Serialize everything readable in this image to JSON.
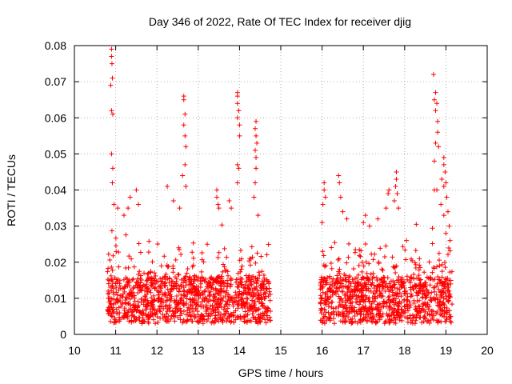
{
  "chart_data": {
    "type": "scatter",
    "title": "Day 346 of 2022, Rate Of TEC Index for receiver djig",
    "xlabel": "GPS time / hours",
    "ylabel": "ROTI / TECUs",
    "xlim": [
      10,
      20
    ],
    "ylim": [
      0,
      0.08
    ],
    "xticks": [
      "10",
      "11",
      "12",
      "13",
      "14",
      "15",
      "16",
      "17",
      "18",
      "19",
      "20"
    ],
    "yticks": [
      "0",
      "0.01",
      "0.02",
      "0.03",
      "0.04",
      "0.05",
      "0.06",
      "0.07",
      "0.08"
    ],
    "grid": true,
    "marker": "+",
    "color": "#ff0000",
    "series": [
      {
        "name": "ROTI",
        "segments": [
          {
            "start": 10.8,
            "end": 14.75,
            "base": 0.009
          },
          {
            "start": 15.95,
            "end": 19.15,
            "base": 0.009
          }
        ],
        "points": [
          [
            10.9,
            0.079
          ],
          [
            10.9,
            0.077
          ],
          [
            10.91,
            0.075
          ],
          [
            10.92,
            0.071
          ],
          [
            10.88,
            0.069
          ],
          [
            10.9,
            0.062
          ],
          [
            10.93,
            0.061
          ],
          [
            10.9,
            0.05
          ],
          [
            10.93,
            0.046
          ],
          [
            10.92,
            0.042
          ],
          [
            10.96,
            0.036
          ],
          [
            11.05,
            0.035
          ],
          [
            11.2,
            0.033
          ],
          [
            11.3,
            0.035
          ],
          [
            11.35,
            0.038
          ],
          [
            11.5,
            0.04
          ],
          [
            11.55,
            0.036
          ],
          [
            12.25,
            0.041
          ],
          [
            12.4,
            0.037
          ],
          [
            12.55,
            0.035
          ],
          [
            12.65,
            0.066
          ],
          [
            12.65,
            0.065
          ],
          [
            12.68,
            0.061
          ],
          [
            12.65,
            0.058
          ],
          [
            12.68,
            0.055
          ],
          [
            12.7,
            0.052
          ],
          [
            12.68,
            0.047
          ],
          [
            12.62,
            0.044
          ],
          [
            12.7,
            0.041
          ],
          [
            13.45,
            0.04
          ],
          [
            13.45,
            0.038
          ],
          [
            13.48,
            0.036
          ],
          [
            13.5,
            0.035
          ],
          [
            13.75,
            0.037
          ],
          [
            13.8,
            0.035
          ],
          [
            13.95,
            0.067
          ],
          [
            13.95,
            0.066
          ],
          [
            13.95,
            0.064
          ],
          [
            13.98,
            0.062
          ],
          [
            13.95,
            0.06
          ],
          [
            14.0,
            0.058
          ],
          [
            14.0,
            0.055
          ],
          [
            13.95,
            0.047
          ],
          [
            13.98,
            0.046
          ],
          [
            13.95,
            0.042
          ],
          [
            14.4,
            0.059
          ],
          [
            14.38,
            0.057
          ],
          [
            14.4,
            0.055
          ],
          [
            14.42,
            0.053
          ],
          [
            14.38,
            0.051
          ],
          [
            14.4,
            0.049
          ],
          [
            14.4,
            0.046
          ],
          [
            14.38,
            0.042
          ],
          [
            14.35,
            0.038
          ],
          [
            14.45,
            0.033
          ],
          [
            16.0,
            0.031
          ],
          [
            16.05,
            0.042
          ],
          [
            16.05,
            0.04
          ],
          [
            16.08,
            0.038
          ],
          [
            16.02,
            0.036
          ],
          [
            16.4,
            0.044
          ],
          [
            16.42,
            0.042
          ],
          [
            16.45,
            0.038
          ],
          [
            16.5,
            0.034
          ],
          [
            16.6,
            0.032
          ],
          [
            17.0,
            0.031
          ],
          [
            17.05,
            0.033
          ],
          [
            17.15,
            0.03
          ],
          [
            17.35,
            0.032
          ],
          [
            17.6,
            0.039
          ],
          [
            17.62,
            0.04
          ],
          [
            17.55,
            0.035
          ],
          [
            17.8,
            0.045
          ],
          [
            17.8,
            0.043
          ],
          [
            17.78,
            0.041
          ],
          [
            17.82,
            0.039
          ],
          [
            17.75,
            0.037
          ],
          [
            17.85,
            0.035
          ],
          [
            18.7,
            0.072
          ],
          [
            18.75,
            0.067
          ],
          [
            18.72,
            0.065
          ],
          [
            18.78,
            0.064
          ],
          [
            18.75,
            0.062
          ],
          [
            18.8,
            0.059
          ],
          [
            18.8,
            0.056
          ],
          [
            18.75,
            0.053
          ],
          [
            18.82,
            0.052
          ],
          [
            18.72,
            0.048
          ],
          [
            18.95,
            0.049
          ],
          [
            18.95,
            0.047
          ],
          [
            18.98,
            0.045
          ],
          [
            18.9,
            0.043
          ],
          [
            19.0,
            0.042
          ],
          [
            18.95,
            0.041
          ],
          [
            18.72,
            0.04
          ],
          [
            18.78,
            0.04
          ],
          [
            19.02,
            0.038
          ],
          [
            18.88,
            0.036
          ],
          [
            19.05,
            0.034
          ],
          [
            18.95,
            0.033
          ],
          [
            19.08,
            0.03
          ],
          [
            19.0,
            0.028
          ],
          [
            19.1,
            0.026
          ]
        ]
      }
    ]
  }
}
